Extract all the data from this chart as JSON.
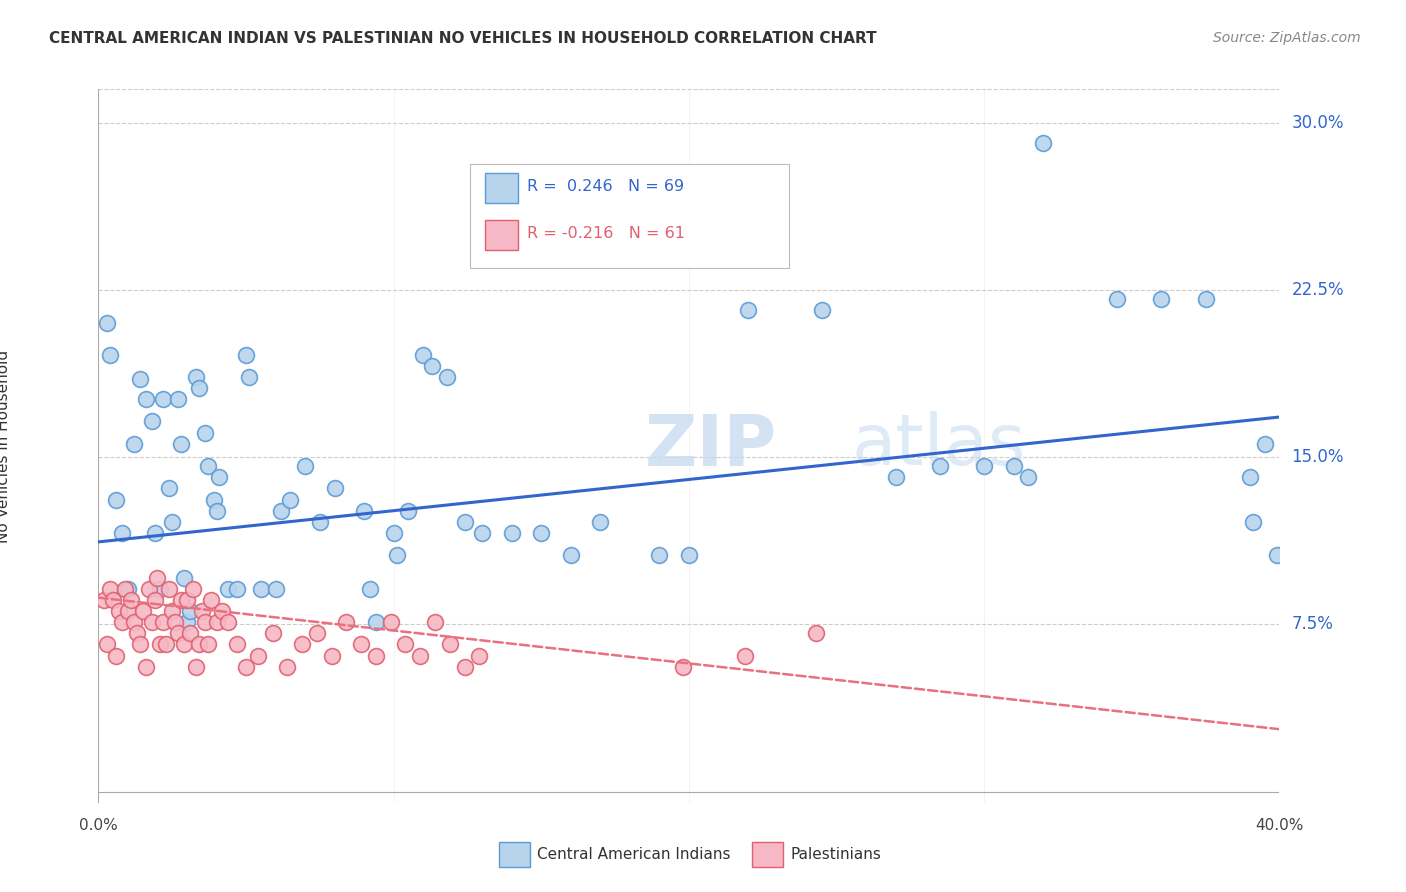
{
  "title": "CENTRAL AMERICAN INDIAN VS PALESTINIAN NO VEHICLES IN HOUSEHOLD CORRELATION CHART",
  "source": "Source: ZipAtlas.com",
  "ylabel": "No Vehicles in Household",
  "yticks": [
    0.0,
    0.075,
    0.15,
    0.225,
    0.3
  ],
  "ytick_labels": [
    "",
    "7.5%",
    "15.0%",
    "22.5%",
    "30.0%"
  ],
  "xmin": 0.0,
  "xmax": 0.4,
  "ymin": -0.005,
  "ymax": 0.315,
  "blue_face": "#B8D4ED",
  "blue_edge": "#5B9BD5",
  "pink_face": "#F5B8C4",
  "pink_edge": "#E06070",
  "line_blue": "#3366CC",
  "line_pink": "#E87080",
  "blue_line_x": [
    0.0,
    0.4
  ],
  "blue_line_y": [
    0.112,
    0.168
  ],
  "pink_line_x": [
    0.0,
    0.4
  ],
  "pink_line_y": [
    0.087,
    0.028
  ],
  "blue_x": [
    0.003,
    0.004,
    0.006,
    0.008,
    0.01,
    0.012,
    0.014,
    0.016,
    0.018,
    0.019,
    0.021,
    0.022,
    0.024,
    0.025,
    0.027,
    0.028,
    0.029,
    0.03,
    0.031,
    0.033,
    0.034,
    0.036,
    0.037,
    0.039,
    0.04,
    0.041,
    0.044,
    0.047,
    0.05,
    0.051,
    0.055,
    0.06,
    0.062,
    0.065,
    0.07,
    0.075,
    0.08,
    0.09,
    0.092,
    0.094,
    0.1,
    0.101,
    0.105,
    0.11,
    0.113,
    0.118,
    0.124,
    0.13,
    0.14,
    0.15,
    0.16,
    0.17,
    0.19,
    0.2,
    0.22,
    0.245,
    0.27,
    0.285,
    0.3,
    0.31,
    0.315,
    0.32,
    0.345,
    0.36,
    0.375,
    0.39,
    0.391,
    0.395,
    0.399
  ],
  "blue_y": [
    0.21,
    0.196,
    0.131,
    0.116,
    0.091,
    0.156,
    0.185,
    0.176,
    0.166,
    0.116,
    0.091,
    0.176,
    0.136,
    0.121,
    0.176,
    0.156,
    0.096,
    0.076,
    0.081,
    0.186,
    0.181,
    0.161,
    0.146,
    0.131,
    0.126,
    0.141,
    0.091,
    0.091,
    0.196,
    0.186,
    0.091,
    0.091,
    0.126,
    0.131,
    0.146,
    0.121,
    0.136,
    0.126,
    0.091,
    0.076,
    0.116,
    0.106,
    0.126,
    0.196,
    0.191,
    0.186,
    0.121,
    0.116,
    0.116,
    0.116,
    0.106,
    0.121,
    0.106,
    0.106,
    0.216,
    0.216,
    0.141,
    0.146,
    0.146,
    0.146,
    0.141,
    0.291,
    0.221,
    0.221,
    0.221,
    0.141,
    0.121,
    0.156,
    0.106
  ],
  "pink_x": [
    0.002,
    0.003,
    0.004,
    0.005,
    0.006,
    0.007,
    0.008,
    0.009,
    0.01,
    0.011,
    0.012,
    0.013,
    0.014,
    0.015,
    0.016,
    0.017,
    0.018,
    0.019,
    0.02,
    0.021,
    0.022,
    0.023,
    0.024,
    0.025,
    0.026,
    0.027,
    0.028,
    0.029,
    0.03,
    0.031,
    0.032,
    0.033,
    0.034,
    0.035,
    0.036,
    0.037,
    0.038,
    0.04,
    0.042,
    0.044,
    0.047,
    0.05,
    0.054,
    0.059,
    0.064,
    0.069,
    0.074,
    0.079,
    0.084,
    0.089,
    0.094,
    0.099,
    0.104,
    0.109,
    0.114,
    0.119,
    0.124,
    0.129,
    0.198,
    0.219,
    0.243
  ],
  "pink_y": [
    0.086,
    0.066,
    0.091,
    0.086,
    0.061,
    0.081,
    0.076,
    0.091,
    0.081,
    0.086,
    0.076,
    0.071,
    0.066,
    0.081,
    0.056,
    0.091,
    0.076,
    0.086,
    0.096,
    0.066,
    0.076,
    0.066,
    0.091,
    0.081,
    0.076,
    0.071,
    0.086,
    0.066,
    0.086,
    0.071,
    0.091,
    0.056,
    0.066,
    0.081,
    0.076,
    0.066,
    0.086,
    0.076,
    0.081,
    0.076,
    0.066,
    0.056,
    0.061,
    0.071,
    0.056,
    0.066,
    0.071,
    0.061,
    0.076,
    0.066,
    0.061,
    0.076,
    0.066,
    0.061,
    0.076,
    0.066,
    0.056,
    0.061,
    0.056,
    0.061,
    0.071
  ],
  "legend_label_blue": "Central American Indians",
  "legend_label_pink": "Palestinians",
  "background_color": "#FFFFFF",
  "grid_color": "#CCCCCC"
}
